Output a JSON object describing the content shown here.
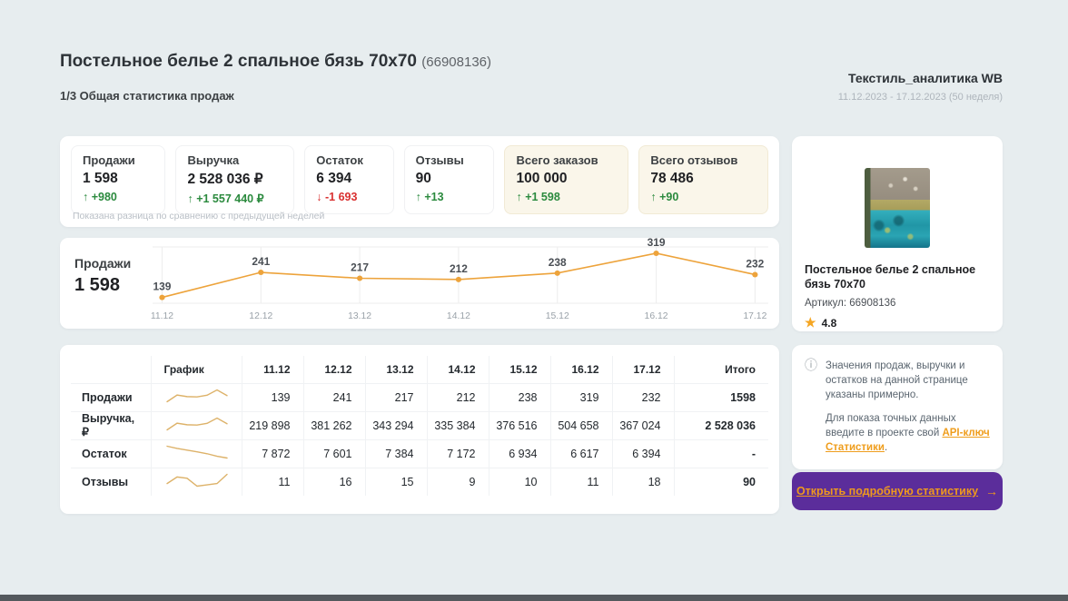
{
  "header": {
    "title": "Постельное белье 2 спальное бязь 70x70",
    "code": "(66908136)",
    "subtitle": "1/3 Общая статистика продаж",
    "brand": "Текстиль_аналитика WB",
    "period": "11.12.2023 - 17.12.2023 (50 неделя)"
  },
  "stats": {
    "cards": [
      {
        "label": "Продажи",
        "value": "1 598",
        "delta": "+980",
        "direction": "up",
        "highlight": false
      },
      {
        "label": "Выручка",
        "value": "2 528 036 ₽",
        "delta": "+1 557 440 ₽",
        "direction": "up",
        "highlight": false
      },
      {
        "label": "Остаток",
        "value": "6 394",
        "delta": "-1 693",
        "direction": "down",
        "highlight": false
      },
      {
        "label": "Отзывы",
        "value": "90",
        "delta": "+13",
        "direction": "up",
        "highlight": false
      },
      {
        "label": "Всего заказов",
        "value": "100 000",
        "delta": "+1 598",
        "direction": "up",
        "highlight": true
      },
      {
        "label": "Всего отзывов",
        "value": "78 486",
        "delta": "+90",
        "direction": "up",
        "highlight": true
      }
    ],
    "note": "Показана разница по сравнению с предыдущей неделей"
  },
  "chart_data": {
    "type": "line",
    "title": "Продажи",
    "total": "1 598",
    "x": [
      "11.12",
      "12.12",
      "13.12",
      "14.12",
      "15.12",
      "16.12",
      "17.12"
    ],
    "values": [
      139,
      241,
      217,
      212,
      238,
      319,
      232
    ],
    "line_color": "#eda33b",
    "grid": true,
    "point_labels": true,
    "legend_position": "none"
  },
  "table": {
    "headers": [
      "",
      "График",
      "11.12",
      "12.12",
      "13.12",
      "14.12",
      "15.12",
      "16.12",
      "17.12",
      "Итого"
    ],
    "rows": [
      {
        "label": "Продажи",
        "cells": [
          "139",
          "241",
          "217",
          "212",
          "238",
          "319",
          "232"
        ],
        "total": "1598",
        "spark": [
          139,
          241,
          217,
          212,
          238,
          319,
          232
        ]
      },
      {
        "label": "Выручка, ₽",
        "cells": [
          "219 898",
          "381 262",
          "343 294",
          "335 384",
          "376 516",
          "504 658",
          "367 024"
        ],
        "total": "2 528 036",
        "spark": [
          219898,
          381262,
          343294,
          335384,
          376516,
          504658,
          367024
        ]
      },
      {
        "label": "Остаток",
        "cells": [
          "7 872",
          "7 601",
          "7 384",
          "7 172",
          "6 934",
          "6 617",
          "6 394"
        ],
        "total": "-",
        "spark": [
          7872,
          7601,
          7384,
          7172,
          6934,
          6617,
          6394
        ]
      },
      {
        "label": "Отзывы",
        "cells": [
          "11",
          "16",
          "15",
          "9",
          "10",
          "11",
          "18"
        ],
        "total": "90",
        "spark": [
          11,
          16,
          15,
          9,
          10,
          11,
          18
        ]
      }
    ]
  },
  "product": {
    "name": "Постельное белье 2 спальное бязь 70x70",
    "sku": "Артикул: 66908136",
    "rating": "4.8",
    "star": "★"
  },
  "info": {
    "icon": "ⓘ",
    "paragraph1": "Значения продаж, выручки и остатков на данной странице указаны примерно.",
    "paragraph2_prefix": "Для показа точных данных введите в проекте свой ",
    "link": "API-ключ Статистики",
    "paragraph2_suffix": "."
  },
  "cta": {
    "label": "Открыть подробную статистику",
    "arrow": "→"
  },
  "colors": {
    "background": "#e7edef",
    "positive": "#2b8a3e",
    "negative": "#d93030",
    "accent_orange": "#eda33b",
    "spark_orange": "#ddb269",
    "button_purple": "#5b2d9b",
    "link_orange": "#ef9a1d",
    "star_orange": "#f5a623"
  }
}
